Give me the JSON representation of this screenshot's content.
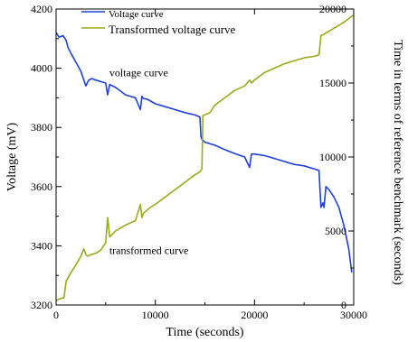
{
  "chart_data": {
    "type": "line",
    "xlabel": "Time (seconds)",
    "ylabel_left": "Voltage (mV)",
    "ylabel_right": "Time in terms of reference benchmark (seconds)",
    "xlim": [
      0,
      30000
    ],
    "ylim_left": [
      3200,
      4200
    ],
    "ylim_right": [
      0,
      20000
    ],
    "x_ticks": [
      "0",
      "10000",
      "20000",
      "30000"
    ],
    "y_left_ticks": [
      "3200",
      "3400",
      "3600",
      "3800",
      "4000",
      "4200"
    ],
    "y_right_ticks": [
      "0",
      "5000",
      "10000",
      "15000",
      "20000"
    ],
    "grid": false,
    "legend": {
      "position": "top-left",
      "entries": [
        "Voltage curve",
        "Transformed voltage curve"
      ]
    },
    "annotations": [
      {
        "text": "voltage curve",
        "x": 5000,
        "y": 3985,
        "axis": "left"
      },
      {
        "text": "transformed curve",
        "x": 5000,
        "y": 3385,
        "axis": "left"
      }
    ],
    "series": [
      {
        "name": "Voltage curve",
        "axis": "left",
        "color": "#1f3fdc",
        "x": [
          0,
          300,
          700,
          1000,
          1200,
          1500,
          2000,
          2500,
          3000,
          3200,
          3300,
          3600,
          4000,
          4500,
          5000,
          5200,
          5400,
          6000,
          7000,
          8000,
          8500,
          8650,
          8800,
          9200,
          10000,
          11000,
          12000,
          13000,
          14000,
          14500,
          14600,
          14700,
          15000,
          16000,
          17000,
          18000,
          19000,
          19500,
          19700,
          20000,
          21000,
          22000,
          23000,
          24000,
          25000,
          26000,
          26500,
          26700,
          26900,
          27000,
          27200,
          27500,
          28000,
          28500,
          29000,
          29500,
          29800
        ],
        "y": [
          4120,
          4105,
          4110,
          4095,
          4070,
          4050,
          4020,
          3990,
          3940,
          3955,
          3960,
          3965,
          3960,
          3955,
          3950,
          3910,
          3945,
          3935,
          3910,
          3900,
          3860,
          3905,
          3898,
          3895,
          3880,
          3870,
          3860,
          3850,
          3842,
          3835,
          3770,
          3760,
          3750,
          3740,
          3725,
          3712,
          3700,
          3665,
          3710,
          3710,
          3705,
          3695,
          3685,
          3675,
          3670,
          3660,
          3655,
          3530,
          3545,
          3530,
          3600,
          3590,
          3565,
          3530,
          3470,
          3390,
          3310
        ]
      },
      {
        "name": "Transformed voltage curve",
        "axis": "right",
        "color": "#9aaa1c",
        "x": [
          0,
          300,
          800,
          1000,
          1500,
          2000,
          2500,
          2800,
          3000,
          3200,
          3500,
          4000,
          4500,
          5000,
          5200,
          5400,
          6000,
          7000,
          8000,
          8500,
          8650,
          8800,
          9500,
          10000,
          11000,
          12000,
          13000,
          14000,
          14500,
          14700,
          14800,
          15500,
          16000,
          17000,
          18000,
          19000,
          19500,
          19700,
          20000,
          21000,
          22000,
          23000,
          24000,
          25000,
          26000,
          26500,
          26700,
          27000,
          28000,
          29000,
          30000
        ],
        "y": [
          300,
          400,
          500,
          1600,
          2200,
          2700,
          3300,
          3800,
          3400,
          3300,
          3400,
          3500,
          3700,
          4200,
          5900,
          4600,
          5000,
          5400,
          5700,
          6800,
          5900,
          6200,
          6600,
          6800,
          7300,
          7800,
          8300,
          8800,
          9000,
          9200,
          12800,
          13000,
          13500,
          14000,
          14500,
          14800,
          15200,
          15000,
          15200,
          15700,
          16000,
          16300,
          16500,
          16700,
          16800,
          16900,
          18200,
          18300,
          18700,
          19100,
          19600
        ]
      }
    ]
  }
}
